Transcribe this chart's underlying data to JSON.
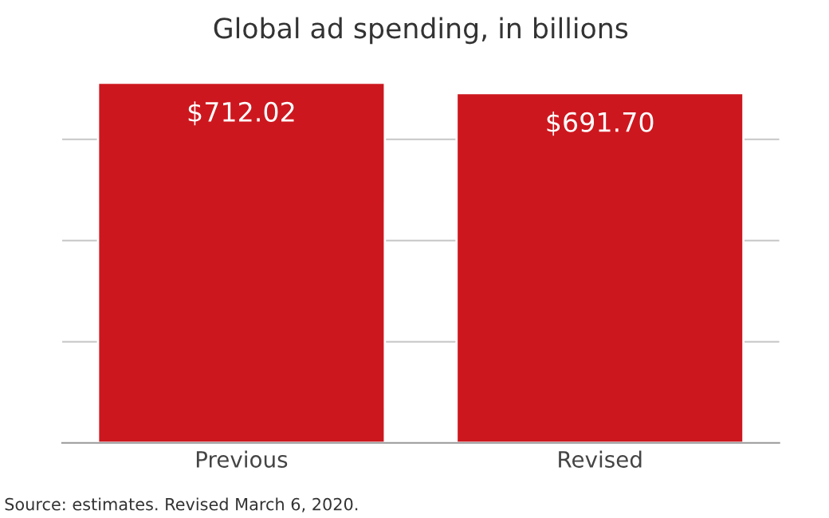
{
  "chart_data": {
    "type": "bar",
    "title": "Global ad spending, in billions",
    "categories": [
      "Previous",
      "Revised"
    ],
    "values": [
      712.02,
      691.7
    ],
    "color": "#cd171e",
    "value_labels": [
      "$712.02",
      "$691.70"
    ],
    "yticks": [
      {
        "value": 200,
        "label": null
      },
      {
        "value": 400,
        "label": null
      },
      {
        "value": 600,
        "label": null
      }
    ],
    "tick_labels": "x",
    "grid": "y",
    "annotations": [
      "Source: estimates. Revised March 6, 2020."
    ]
  }
}
